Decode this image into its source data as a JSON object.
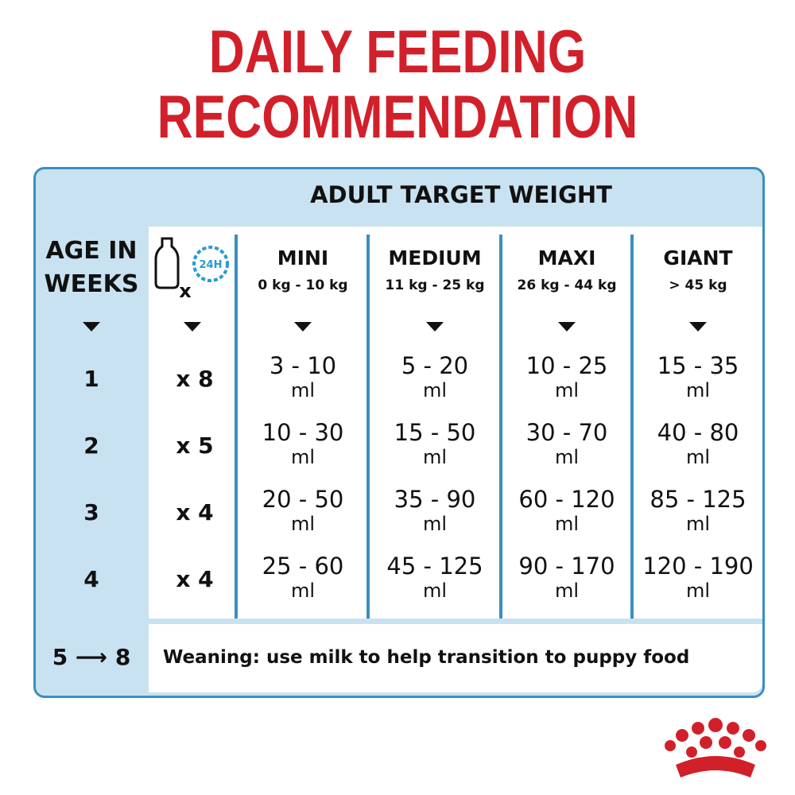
{
  "title": [
    "DAILY FEEDING",
    "RECOMMENDATION"
  ],
  "header": "ADULT TARGET WEIGHT",
  "age_header": [
    "AGE IN",
    "WEEKS"
  ],
  "feeds_icon": {
    "clock": "24H",
    "times": "x"
  },
  "columns": [
    {
      "name": "MINI",
      "range": "0 kg - 10 kg"
    },
    {
      "name": "MEDIUM",
      "range": "11 kg - 25 kg"
    },
    {
      "name": "MAXI",
      "range": "26 kg - 44 kg"
    },
    {
      "name": "GIANT",
      "range": "> 45 kg"
    }
  ],
  "rows": [
    {
      "week": "1",
      "feeds": "x 8",
      "amounts": [
        {
          "amount": "3 - 10",
          "unit": "ml"
        },
        {
          "amount": "5 - 20",
          "unit": "ml"
        },
        {
          "amount": "10 - 25",
          "unit": "ml"
        },
        {
          "amount": "15 - 35",
          "unit": "ml"
        }
      ]
    },
    {
      "week": "2",
      "feeds": "x 5",
      "amounts": [
        {
          "amount": "10 - 30",
          "unit": "ml"
        },
        {
          "amount": "15 - 50",
          "unit": "ml"
        },
        {
          "amount": "30 - 70",
          "unit": "ml"
        },
        {
          "amount": "40 - 80",
          "unit": "ml"
        }
      ]
    },
    {
      "week": "3",
      "feeds": "x 4",
      "amounts": [
        {
          "amount": "20 - 50",
          "unit": "ml"
        },
        {
          "amount": "35 - 90",
          "unit": "ml"
        },
        {
          "amount": "60 - 120",
          "unit": "ml"
        },
        {
          "amount": "85 - 125",
          "unit": "ml"
        }
      ]
    },
    {
      "week": "4",
      "feeds": "x 4",
      "amounts": [
        {
          "amount": "25 - 60",
          "unit": "ml"
        },
        {
          "amount": "45 - 125",
          "unit": "ml"
        },
        {
          "amount": "90 - 170",
          "unit": "ml"
        },
        {
          "amount": "120 - 190",
          "unit": "ml"
        }
      ]
    }
  ],
  "footer": {
    "week": "5 ⟶ 8",
    "text": "Weaning: use milk to help transition to puppy food"
  }
}
